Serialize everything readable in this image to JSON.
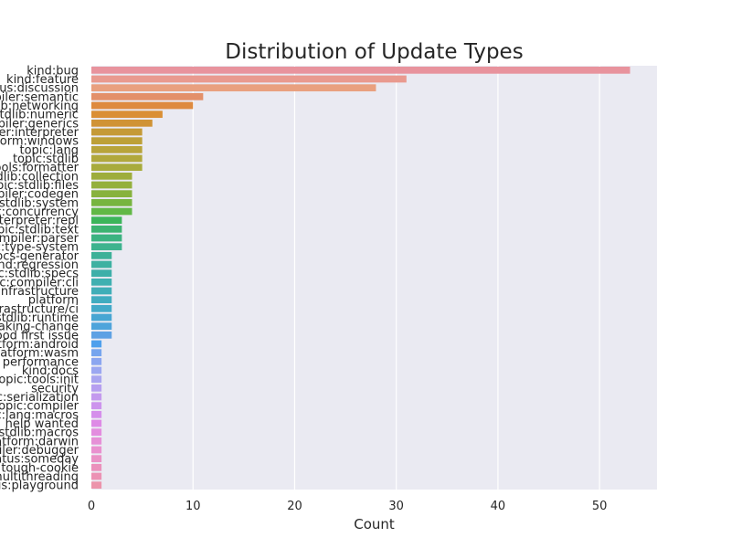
{
  "chart_data": {
    "type": "bar",
    "orientation": "horizontal",
    "title": "Distribution of Update Types",
    "xlabel": "Count",
    "ylabel": "",
    "xlim": [
      0,
      55.65
    ],
    "xticks": [
      0,
      10,
      20,
      30,
      40,
      50
    ],
    "grid": true,
    "categories": [
      "kind:bug",
      "kind:feature",
      "status:discussion",
      "topic:compiler:semantic",
      "topic:stdlib:networking",
      "topic:stdlib:numeric",
      "topic:compiler:generics",
      "topic:compiler:interpreter",
      "platform:windows",
      "topic:lang",
      "topic:stdlib",
      "topic:tools:formatter",
      "topic:stdlib:collection",
      "topic:stdlib:files",
      "topic:compiler:codegen",
      "topic:stdlib:system",
      "topic:concurrency",
      "topic:interpreter:repl",
      "topic:stdlib:text",
      "topic:compiler:parser",
      "topic:type-system",
      "topic:docs-generator",
      "kind:regression",
      "topic:stdlib:specs",
      "topic:compiler:cli",
      "infrastructure",
      "platform",
      "infrastructure/ci",
      "topic:stdlib:runtime",
      "kind:breaking-change",
      "good first issue",
      "platform:android",
      "platform:wasm",
      "performance",
      "kind:docs",
      "topic:tools:init",
      "security",
      "topic:serialization",
      "topic:compiler",
      "topic:lang:macros",
      "help wanted",
      "topic:stdlib:macros",
      "platform:darwin",
      "topic:compiler:debugger",
      "status:someday",
      "tough-cookie",
      "multithreading",
      "status:playground"
    ],
    "values": [
      53,
      31,
      28,
      11,
      10,
      7,
      6,
      5,
      5,
      5,
      5,
      5,
      4,
      4,
      4,
      4,
      4,
      3,
      3,
      3,
      3,
      2,
      2,
      2,
      2,
      2,
      2,
      2,
      2,
      2,
      2,
      1,
      1,
      1,
      1,
      1,
      1,
      1,
      1,
      1,
      1,
      1,
      1,
      1,
      1,
      1,
      1,
      1
    ],
    "colors": [
      "#e8939d",
      "#e99a8f",
      "#e9a07f",
      "#e3906a",
      "#de8a3f",
      "#da8f35",
      "#d09335",
      "#c59a36",
      "#bda037",
      "#b8a43a",
      "#b1a83c",
      "#a8ab3c",
      "#9ead3c",
      "#94b03c",
      "#87b23d",
      "#77b53f",
      "#61b846",
      "#3cb55a",
      "#3cb371",
      "#3cb381",
      "#3db38e",
      "#3db198",
      "#3db1a1",
      "#3eafa9",
      "#3fb0b1",
      "#40aeb8",
      "#41acc0",
      "#43aac9",
      "#47a6d3",
      "#4ea4db",
      "#5ea1e4",
      "#4fa0ec",
      "#76a5ee",
      "#8ba6f0",
      "#9ba7f1",
      "#a9a5f0",
      "#b69ff0",
      "#c49aee",
      "#cd94ed",
      "#d58feb",
      "#de8ae6",
      "#e38ddf",
      "#e690d7",
      "#e991cf",
      "#ea92c6",
      "#eb91bc",
      "#ec92b4",
      "#ec93ab"
    ]
  }
}
